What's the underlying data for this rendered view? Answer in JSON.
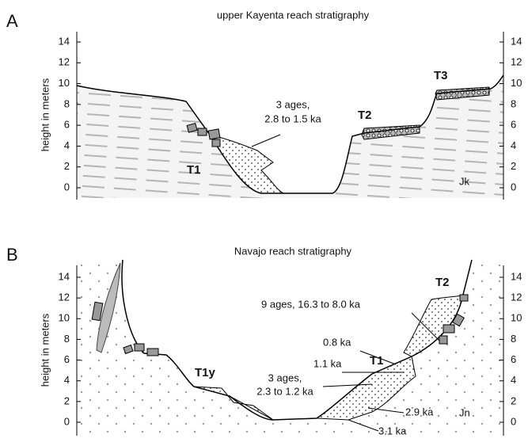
{
  "panels": [
    {
      "letter": "A",
      "title": "upper Kayenta reach stratigraphy",
      "y_axis_label": "height in meters",
      "yticks": [
        0,
        2,
        4,
        6,
        8,
        10,
        12,
        14
      ],
      "annotations": [
        "3 ages,",
        "2.8 to 1.5 ka",
        "T1",
        "T2",
        "T3",
        "Jk"
      ]
    },
    {
      "letter": "B",
      "title": "Navajo reach stratigraphy",
      "y_axis_label": "height in meters",
      "yticks": [
        0,
        2,
        4,
        6,
        8,
        10,
        12,
        14
      ],
      "annotations": [
        "9 ages, 16.3 to 8.0 ka",
        "T2",
        "0.8 ka",
        "1.1 ka",
        "T1",
        "3 ages,",
        "2.3 to 1.2 ka",
        "2.9 ka",
        "3.1 ka",
        "T1y",
        "Jn"
      ]
    }
  ]
}
